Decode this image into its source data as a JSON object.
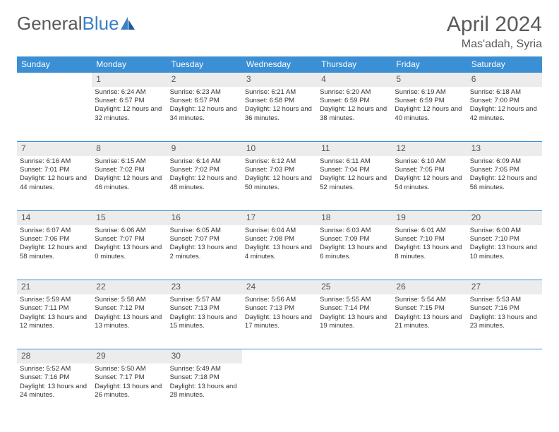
{
  "logo": {
    "text_gray": "General",
    "text_blue": "Blue"
  },
  "title": "April 2024",
  "location": "Mas'adah, Syria",
  "colors": {
    "header_bg": "#3b8fd4",
    "header_text": "#ffffff",
    "daynum_bg": "#ececec",
    "rule": "#3b8fd4",
    "text": "#333333",
    "title_gray": "#5a5a5a",
    "logo_blue": "#3b7fc4"
  },
  "weekdays": [
    "Sunday",
    "Monday",
    "Tuesday",
    "Wednesday",
    "Thursday",
    "Friday",
    "Saturday"
  ],
  "weeks": [
    [
      null,
      {
        "n": "1",
        "sr": "Sunrise: 6:24 AM",
        "ss": "Sunset: 6:57 PM",
        "dl": "Daylight: 12 hours and 32 minutes."
      },
      {
        "n": "2",
        "sr": "Sunrise: 6:23 AM",
        "ss": "Sunset: 6:57 PM",
        "dl": "Daylight: 12 hours and 34 minutes."
      },
      {
        "n": "3",
        "sr": "Sunrise: 6:21 AM",
        "ss": "Sunset: 6:58 PM",
        "dl": "Daylight: 12 hours and 36 minutes."
      },
      {
        "n": "4",
        "sr": "Sunrise: 6:20 AM",
        "ss": "Sunset: 6:59 PM",
        "dl": "Daylight: 12 hours and 38 minutes."
      },
      {
        "n": "5",
        "sr": "Sunrise: 6:19 AM",
        "ss": "Sunset: 6:59 PM",
        "dl": "Daylight: 12 hours and 40 minutes."
      },
      {
        "n": "6",
        "sr": "Sunrise: 6:18 AM",
        "ss": "Sunset: 7:00 PM",
        "dl": "Daylight: 12 hours and 42 minutes."
      }
    ],
    [
      {
        "n": "7",
        "sr": "Sunrise: 6:16 AM",
        "ss": "Sunset: 7:01 PM",
        "dl": "Daylight: 12 hours and 44 minutes."
      },
      {
        "n": "8",
        "sr": "Sunrise: 6:15 AM",
        "ss": "Sunset: 7:02 PM",
        "dl": "Daylight: 12 hours and 46 minutes."
      },
      {
        "n": "9",
        "sr": "Sunrise: 6:14 AM",
        "ss": "Sunset: 7:02 PM",
        "dl": "Daylight: 12 hours and 48 minutes."
      },
      {
        "n": "10",
        "sr": "Sunrise: 6:12 AM",
        "ss": "Sunset: 7:03 PM",
        "dl": "Daylight: 12 hours and 50 minutes."
      },
      {
        "n": "11",
        "sr": "Sunrise: 6:11 AM",
        "ss": "Sunset: 7:04 PM",
        "dl": "Daylight: 12 hours and 52 minutes."
      },
      {
        "n": "12",
        "sr": "Sunrise: 6:10 AM",
        "ss": "Sunset: 7:05 PM",
        "dl": "Daylight: 12 hours and 54 minutes."
      },
      {
        "n": "13",
        "sr": "Sunrise: 6:09 AM",
        "ss": "Sunset: 7:05 PM",
        "dl": "Daylight: 12 hours and 56 minutes."
      }
    ],
    [
      {
        "n": "14",
        "sr": "Sunrise: 6:07 AM",
        "ss": "Sunset: 7:06 PM",
        "dl": "Daylight: 12 hours and 58 minutes."
      },
      {
        "n": "15",
        "sr": "Sunrise: 6:06 AM",
        "ss": "Sunset: 7:07 PM",
        "dl": "Daylight: 13 hours and 0 minutes."
      },
      {
        "n": "16",
        "sr": "Sunrise: 6:05 AM",
        "ss": "Sunset: 7:07 PM",
        "dl": "Daylight: 13 hours and 2 minutes."
      },
      {
        "n": "17",
        "sr": "Sunrise: 6:04 AM",
        "ss": "Sunset: 7:08 PM",
        "dl": "Daylight: 13 hours and 4 minutes."
      },
      {
        "n": "18",
        "sr": "Sunrise: 6:03 AM",
        "ss": "Sunset: 7:09 PM",
        "dl": "Daylight: 13 hours and 6 minutes."
      },
      {
        "n": "19",
        "sr": "Sunrise: 6:01 AM",
        "ss": "Sunset: 7:10 PM",
        "dl": "Daylight: 13 hours and 8 minutes."
      },
      {
        "n": "20",
        "sr": "Sunrise: 6:00 AM",
        "ss": "Sunset: 7:10 PM",
        "dl": "Daylight: 13 hours and 10 minutes."
      }
    ],
    [
      {
        "n": "21",
        "sr": "Sunrise: 5:59 AM",
        "ss": "Sunset: 7:11 PM",
        "dl": "Daylight: 13 hours and 12 minutes."
      },
      {
        "n": "22",
        "sr": "Sunrise: 5:58 AM",
        "ss": "Sunset: 7:12 PM",
        "dl": "Daylight: 13 hours and 13 minutes."
      },
      {
        "n": "23",
        "sr": "Sunrise: 5:57 AM",
        "ss": "Sunset: 7:13 PM",
        "dl": "Daylight: 13 hours and 15 minutes."
      },
      {
        "n": "24",
        "sr": "Sunrise: 5:56 AM",
        "ss": "Sunset: 7:13 PM",
        "dl": "Daylight: 13 hours and 17 minutes."
      },
      {
        "n": "25",
        "sr": "Sunrise: 5:55 AM",
        "ss": "Sunset: 7:14 PM",
        "dl": "Daylight: 13 hours and 19 minutes."
      },
      {
        "n": "26",
        "sr": "Sunrise: 5:54 AM",
        "ss": "Sunset: 7:15 PM",
        "dl": "Daylight: 13 hours and 21 minutes."
      },
      {
        "n": "27",
        "sr": "Sunrise: 5:53 AM",
        "ss": "Sunset: 7:16 PM",
        "dl": "Daylight: 13 hours and 23 minutes."
      }
    ],
    [
      {
        "n": "28",
        "sr": "Sunrise: 5:52 AM",
        "ss": "Sunset: 7:16 PM",
        "dl": "Daylight: 13 hours and 24 minutes."
      },
      {
        "n": "29",
        "sr": "Sunrise: 5:50 AM",
        "ss": "Sunset: 7:17 PM",
        "dl": "Daylight: 13 hours and 26 minutes."
      },
      {
        "n": "30",
        "sr": "Sunrise: 5:49 AM",
        "ss": "Sunset: 7:18 PM",
        "dl": "Daylight: 13 hours and 28 minutes."
      },
      null,
      null,
      null,
      null
    ]
  ]
}
